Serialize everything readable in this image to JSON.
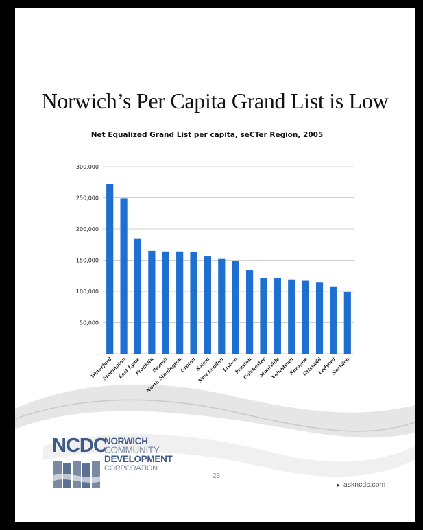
{
  "slide": {
    "title": "Norwich’s Per Capita Grand List is Low",
    "page_number": "23",
    "website": "askncdc.com",
    "logo": {
      "abbrev": "NCDC",
      "line1": "NORWICH",
      "line2": "COMMUNITY",
      "line3": "DEVELOPMENT",
      "line4": "CORPORATION"
    }
  },
  "colors": {
    "bar": "#1f6fd1",
    "gridline": "#d0d0d0",
    "logo_primary": "#3e5a85",
    "logo_secondary": "#7b8aa3"
  },
  "chart_data": {
    "type": "bar",
    "title": "Net Equalized Grand List per capita, seCTer Region, 2005",
    "xlabel": "",
    "ylabel": "",
    "ylim": [
      0,
      300000
    ],
    "y_ticks": [
      "-",
      "50,000",
      "100,000",
      "150,000",
      "200,000",
      "250,000",
      "300,000"
    ],
    "grid": true,
    "categories": [
      "Waterford",
      "Stonington",
      "East Lyme",
      "Franklin",
      "Bozrah",
      "North Stonington",
      "Groton",
      "Salem",
      "New London",
      "Lisbon",
      "Preston",
      "Colchester",
      "Montville",
      "Voluntown",
      "Sprague",
      "Griswold",
      "Ledyard",
      "Norwich"
    ],
    "values": [
      272000,
      249000,
      185000,
      165000,
      164000,
      164000,
      163000,
      156000,
      152000,
      149000,
      134000,
      122000,
      122000,
      119000,
      117000,
      114000,
      108000,
      99000
    ]
  }
}
